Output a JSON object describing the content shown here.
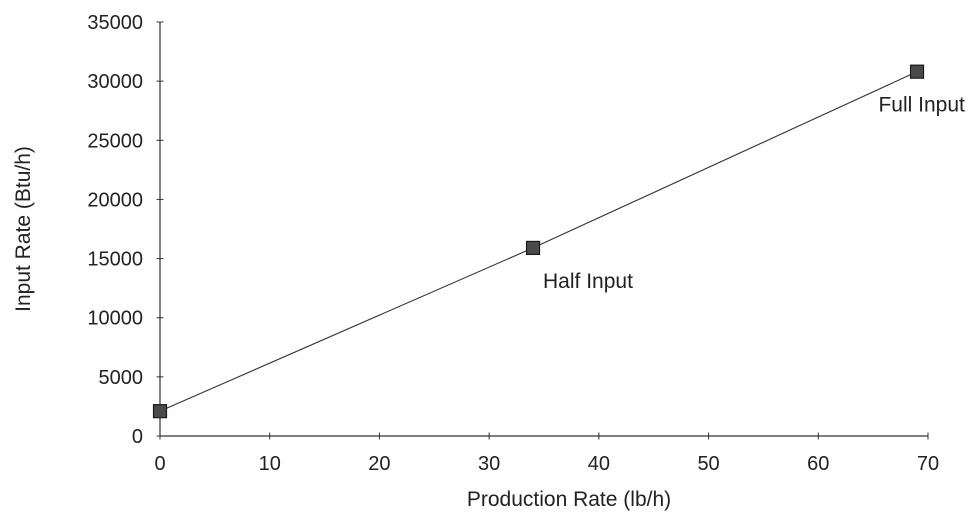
{
  "chart_data": {
    "type": "scatter",
    "title": "",
    "xlabel": "Production Rate (lb/h)",
    "ylabel": "Input Rate (Btu/h)",
    "xlim": [
      0,
      70
    ],
    "ylim": [
      0,
      35000
    ],
    "x_ticks": [
      0,
      10,
      20,
      30,
      40,
      50,
      60,
      70
    ],
    "y_ticks": [
      0,
      5000,
      10000,
      15000,
      20000,
      25000,
      30000,
      35000
    ],
    "grid": false,
    "legend": "none",
    "marker": "square",
    "marker_color": "#4a4a4a",
    "line_color": "#333333",
    "series": [
      {
        "points": [
          {
            "x": 0,
            "y": 2100
          },
          {
            "x": 34,
            "y": 15900
          },
          {
            "x": 69,
            "y": 30800
          }
        ]
      }
    ],
    "annotations": [
      {
        "text": "Half Input",
        "x": 34,
        "y": 15900
      },
      {
        "text": "Full Input",
        "x": 69,
        "y": 30800
      }
    ]
  }
}
